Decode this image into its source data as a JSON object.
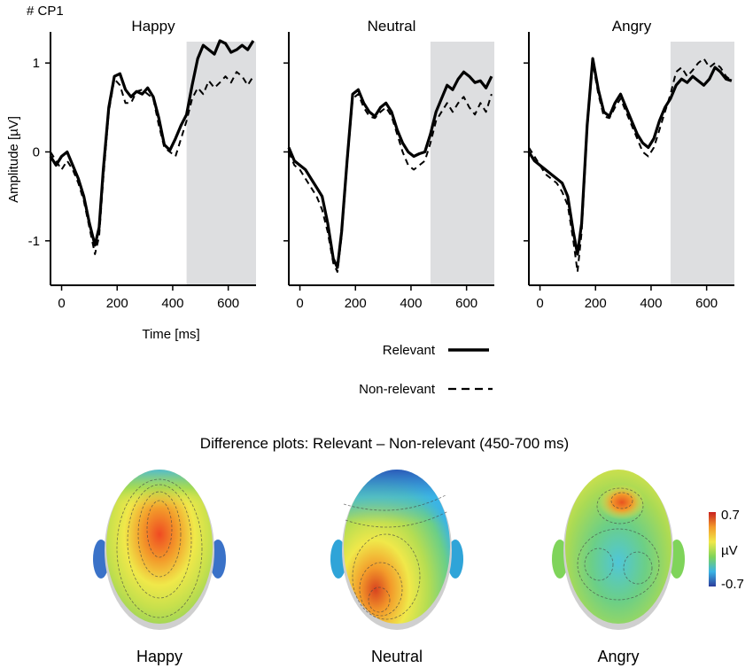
{
  "figure": {
    "electrode_label": "# CP1",
    "difference_title": "Difference plots: Relevant – Non-relevant (450-700 ms)",
    "colorbar": {
      "max_label": "0.7",
      "unit_label": "µV",
      "min_label": "-0.7",
      "min": -0.7,
      "max": 0.7,
      "colors": [
        "#2c3d9c",
        "#3bb4e5",
        "#7fd45a",
        "#f0e84a",
        "#f39a2a",
        "#c8211f"
      ]
    },
    "colors": {
      "relevant": "#000000",
      "nonrelevant": "#000000",
      "shading": "#dddee0"
    }
  },
  "chart_data": {
    "type": "line",
    "ylabel": "Amplitude [µV]",
    "xlabel": "Time [ms]",
    "xlim": [
      -40,
      700
    ],
    "ylim": [
      -1.5,
      1.35
    ],
    "xticks": [
      0,
      200,
      400,
      600
    ],
    "yticks": [
      -1,
      0,
      1
    ],
    "legend": [
      {
        "name": "Relevant",
        "style": "solid"
      },
      {
        "name": "Non-relevant",
        "style": "dashed"
      }
    ],
    "panels": [
      {
        "title": "Happy",
        "shaded_window": [
          450,
          700
        ],
        "series": [
          {
            "name": "Relevant",
            "x": [
              -40,
              -20,
              0,
              20,
              40,
              60,
              80,
              100,
              120,
              135,
              150,
              170,
              190,
              210,
              230,
              250,
              270,
              290,
              310,
              330,
              350,
              370,
              390,
              410,
              430,
              450,
              470,
              490,
              510,
              530,
              550,
              570,
              590,
              610,
              630,
              650,
              670,
              690
            ],
            "y": [
              -0.05,
              -0.15,
              -0.05,
              0.0,
              -0.15,
              -0.3,
              -0.5,
              -0.8,
              -1.05,
              -0.85,
              -0.2,
              0.5,
              0.85,
              0.88,
              0.7,
              0.62,
              0.68,
              0.65,
              0.72,
              0.62,
              0.38,
              0.08,
              0.02,
              0.15,
              0.3,
              0.42,
              0.75,
              1.05,
              1.2,
              1.15,
              1.1,
              1.25,
              1.22,
              1.12,
              1.15,
              1.2,
              1.15,
              1.25
            ]
          },
          {
            "name": "Non-relevant",
            "x": [
              -40,
              -20,
              0,
              20,
              40,
              60,
              80,
              100,
              120,
              135,
              150,
              170,
              190,
              210,
              230,
              250,
              270,
              290,
              310,
              330,
              350,
              370,
              390,
              410,
              430,
              450,
              470,
              490,
              510,
              530,
              550,
              570,
              590,
              610,
              630,
              650,
              670,
              690
            ],
            "y": [
              0.0,
              -0.1,
              -0.2,
              -0.1,
              -0.2,
              -0.35,
              -0.55,
              -0.85,
              -1.15,
              -0.95,
              -0.3,
              0.45,
              0.82,
              0.75,
              0.55,
              0.55,
              0.68,
              0.7,
              0.65,
              0.6,
              0.3,
              0.05,
              0.0,
              -0.05,
              0.15,
              0.35,
              0.6,
              0.72,
              0.65,
              0.8,
              0.72,
              0.78,
              0.85,
              0.78,
              0.9,
              0.85,
              0.75,
              0.85
            ]
          }
        ]
      },
      {
        "title": "Neutral",
        "shaded_window": [
          470,
          700
        ],
        "series": [
          {
            "name": "Relevant",
            "x": [
              -40,
              -20,
              0,
              20,
              40,
              60,
              80,
              100,
              120,
              135,
              150,
              170,
              190,
              210,
              230,
              250,
              270,
              290,
              310,
              330,
              350,
              370,
              390,
              410,
              430,
              450,
              470,
              490,
              510,
              530,
              550,
              570,
              590,
              610,
              630,
              650,
              670,
              690
            ],
            "y": [
              0.05,
              -0.1,
              -0.15,
              -0.2,
              -0.3,
              -0.4,
              -0.5,
              -0.8,
              -1.2,
              -1.3,
              -0.9,
              -0.1,
              0.65,
              0.7,
              0.55,
              0.45,
              0.4,
              0.5,
              0.55,
              0.45,
              0.25,
              0.1,
              0.0,
              -0.05,
              -0.02,
              0.0,
              0.2,
              0.45,
              0.6,
              0.75,
              0.7,
              0.82,
              0.9,
              0.85,
              0.78,
              0.8,
              0.72,
              0.85
            ]
          },
          {
            "name": "Non-relevant",
            "x": [
              -40,
              -20,
              0,
              20,
              40,
              60,
              80,
              100,
              120,
              135,
              150,
              170,
              190,
              210,
              230,
              250,
              270,
              290,
              310,
              330,
              350,
              370,
              390,
              410,
              430,
              450,
              470,
              490,
              510,
              530,
              550,
              570,
              590,
              610,
              630,
              650,
              670,
              690
            ],
            "y": [
              0.0,
              -0.15,
              -0.2,
              -0.3,
              -0.4,
              -0.5,
              -0.65,
              -0.9,
              -1.25,
              -1.35,
              -0.95,
              -0.15,
              0.6,
              0.65,
              0.5,
              0.4,
              0.38,
              0.45,
              0.5,
              0.4,
              0.2,
              0.0,
              -0.15,
              -0.2,
              -0.15,
              -0.1,
              0.1,
              0.35,
              0.45,
              0.55,
              0.45,
              0.55,
              0.62,
              0.5,
              0.42,
              0.55,
              0.45,
              0.65
            ]
          }
        ]
      },
      {
        "title": "Angry",
        "shaded_window": [
          470,
          700
        ],
        "series": [
          {
            "name": "Relevant",
            "x": [
              -40,
              -20,
              0,
              20,
              40,
              60,
              80,
              100,
              120,
              135,
              150,
              170,
              190,
              210,
              230,
              250,
              270,
              290,
              310,
              330,
              350,
              370,
              390,
              410,
              430,
              450,
              470,
              490,
              510,
              530,
              550,
              570,
              590,
              610,
              630,
              650,
              670,
              690
            ],
            "y": [
              0.0,
              -0.1,
              -0.15,
              -0.2,
              -0.25,
              -0.3,
              -0.35,
              -0.5,
              -0.9,
              -1.15,
              -0.8,
              0.3,
              1.05,
              0.7,
              0.45,
              0.4,
              0.55,
              0.65,
              0.5,
              0.35,
              0.2,
              0.1,
              0.05,
              0.15,
              0.35,
              0.5,
              0.6,
              0.75,
              0.82,
              0.78,
              0.85,
              0.8,
              0.75,
              0.82,
              0.95,
              0.9,
              0.82,
              0.8
            ]
          },
          {
            "name": "Non-relevant",
            "x": [
              -40,
              -20,
              0,
              20,
              40,
              60,
              80,
              100,
              120,
              135,
              150,
              170,
              190,
              210,
              230,
              250,
              270,
              290,
              310,
              330,
              350,
              370,
              390,
              410,
              430,
              450,
              470,
              490,
              510,
              530,
              550,
              570,
              590,
              610,
              630,
              650,
              670,
              690
            ],
            "y": [
              0.05,
              -0.05,
              -0.15,
              -0.25,
              -0.3,
              -0.35,
              -0.45,
              -0.6,
              -1.0,
              -1.35,
              -0.9,
              0.25,
              1.0,
              0.65,
              0.4,
              0.38,
              0.5,
              0.6,
              0.45,
              0.3,
              0.15,
              0.0,
              -0.05,
              0.05,
              0.25,
              0.45,
              0.65,
              0.9,
              0.95,
              0.85,
              0.92,
              1.0,
              1.05,
              0.95,
              1.0,
              0.95,
              0.85,
              0.8
            ]
          }
        ]
      }
    ]
  },
  "topomaps": [
    {
      "label": "Happy"
    },
    {
      "label": "Neutral"
    },
    {
      "label": "Angry"
    }
  ]
}
